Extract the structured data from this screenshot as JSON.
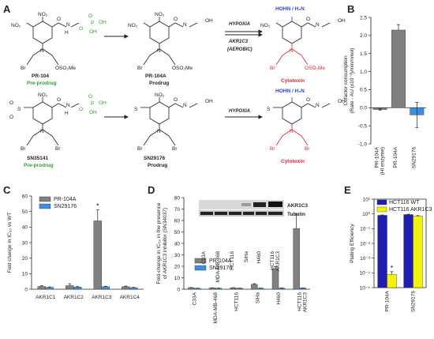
{
  "panels": {
    "A": {
      "label": "A",
      "row1": {
        "compounds": [
          {
            "name": "PR-104",
            "role": "Pre-prodrug"
          },
          {
            "name": "PR-104A",
            "role": "Prodrug"
          },
          {
            "name": "",
            "role": "Cytotoxin"
          }
        ],
        "arrow_labels": [
          "HYPOXIA",
          "AKR1C3",
          "(AEROBIC)"
        ],
        "cytotoxin_header": "HOHN / H₂N"
      },
      "row2": {
        "compounds": [
          {
            "name": "SN35141",
            "role": "Pre-prodrug"
          },
          {
            "name": "SN29176",
            "role": "Prodrug"
          },
          {
            "name": "",
            "role": "Cytotoxin"
          }
        ],
        "arrow_labels": [
          "HYPOXIA"
        ],
        "cytotoxin_header": "HOHN / H₂N"
      },
      "atoms": {
        "no2": "NO₂",
        "n": "N",
        "o": "O",
        "h": "H",
        "oh": "OH",
        "br": "Br",
        "oso2me": "OSO₂Me",
        "s": "S",
        "p": "P"
      }
    },
    "B": {
      "label": "B"
    },
    "C": {
      "label": "C"
    },
    "D": {
      "label": "D",
      "blot_labels": [
        "AKR1C3",
        "Tubulin"
      ],
      "blot_lanes": [
        "C33A",
        "MDA-MB-468",
        "HCT116",
        "SiHa",
        "H460",
        "HCT116 AKR1C3"
      ]
    },
    "E": {
      "label": "E"
    }
  },
  "chart_data": [
    {
      "panel": "B",
      "type": "bar",
      "categories": [
        "PR-104A (HI enzyme)",
        "PR-104A",
        "SN29176"
      ],
      "values": [
        -0.05,
        2.15,
        -0.2
      ],
      "errors": [
        0.02,
        0.15,
        0.35
      ],
      "colors": [
        "#808080",
        "#808080",
        "#3b8fe0"
      ],
      "ylabel": "Cofactor consumption (Rate - AU (x10⁻³)/min/nmol)",
      "ylim": [
        -1.0,
        2.5
      ],
      "yticks": [
        "-1.0",
        "-0.5",
        "0.0",
        "0.5",
        "1.0",
        "1.5",
        "2.0",
        "2.5"
      ]
    },
    {
      "panel": "C",
      "type": "bar",
      "categories": [
        "AKR1C1",
        "AKR1C2",
        "AKR1C3",
        "AKR1C4"
      ],
      "series": [
        {
          "name": "PR-104A",
          "color": "#808080",
          "values": [
            1.8,
            2.3,
            44,
            1.6
          ],
          "errors": [
            0.6,
            1.2,
            7,
            0.4
          ]
        },
        {
          "name": "SN29176",
          "color": "#3b8fe0",
          "values": [
            1.2,
            1.4,
            1.6,
            1.0
          ],
          "errors": [
            0.3,
            0.3,
            0.3,
            0.2
          ]
        }
      ],
      "annotations": [
        "*"
      ],
      "ylabel": "Fold change in IC₅₀ vs WT",
      "ylim": [
        0,
        60
      ],
      "yticks": [
        "0",
        "10",
        "20",
        "30",
        "40",
        "50",
        "60"
      ]
    },
    {
      "panel": "D",
      "type": "bar",
      "categories": [
        "C33A",
        "MDA-MB-468",
        "HCT116",
        "SiHa",
        "H460",
        "HCT116 AKR1C3"
      ],
      "series": [
        {
          "name": "PR-104A",
          "color": "#808080",
          "values": [
            1.3,
            1.1,
            1.2,
            4.2,
            18,
            53
          ],
          "errors": [
            0.2,
            0.2,
            0.2,
            0.6,
            1.8,
            13
          ]
        },
        {
          "name": "SN29176",
          "color": "#3b8fe0",
          "values": [
            0.8,
            0.9,
            0.9,
            0.9,
            1.0,
            1.1
          ],
          "errors": [
            0.1,
            0.1,
            0.1,
            0.1,
            0.1,
            0.1
          ]
        }
      ],
      "ylabel": "Fold-change in IC₅₀ in the presence of AKR1C3 inhibitor (SN34037)",
      "ylim": [
        0,
        80
      ],
      "yticks": [
        "0",
        "10",
        "20",
        "30",
        "40",
        "50",
        "60",
        "70",
        "80"
      ]
    },
    {
      "panel": "E",
      "type": "bar",
      "categories": [
        "PR-104A",
        "SN29176"
      ],
      "series": [
        {
          "name": "HCT116 WT",
          "color": "#1e1eb4",
          "values": [
            0.8,
            0.9
          ],
          "errors": [
            0.05,
            0.05
          ]
        },
        {
          "name": "HCT116 AKR1C3",
          "color": "#f4f400",
          "values": [
            8e-05,
            0.72
          ],
          "errors": [
            4e-05,
            0.05
          ]
        }
      ],
      "annotations": [
        "*"
      ],
      "ylabel": "Plating Efficiency",
      "yscale": "log",
      "ylim": [
        1e-05,
        10
      ],
      "yticks": [
        "10⁻⁵",
        "10⁻⁴",
        "10⁻³",
        "10⁻²",
        "10⁻¹",
        "10⁰",
        "10¹"
      ]
    }
  ]
}
